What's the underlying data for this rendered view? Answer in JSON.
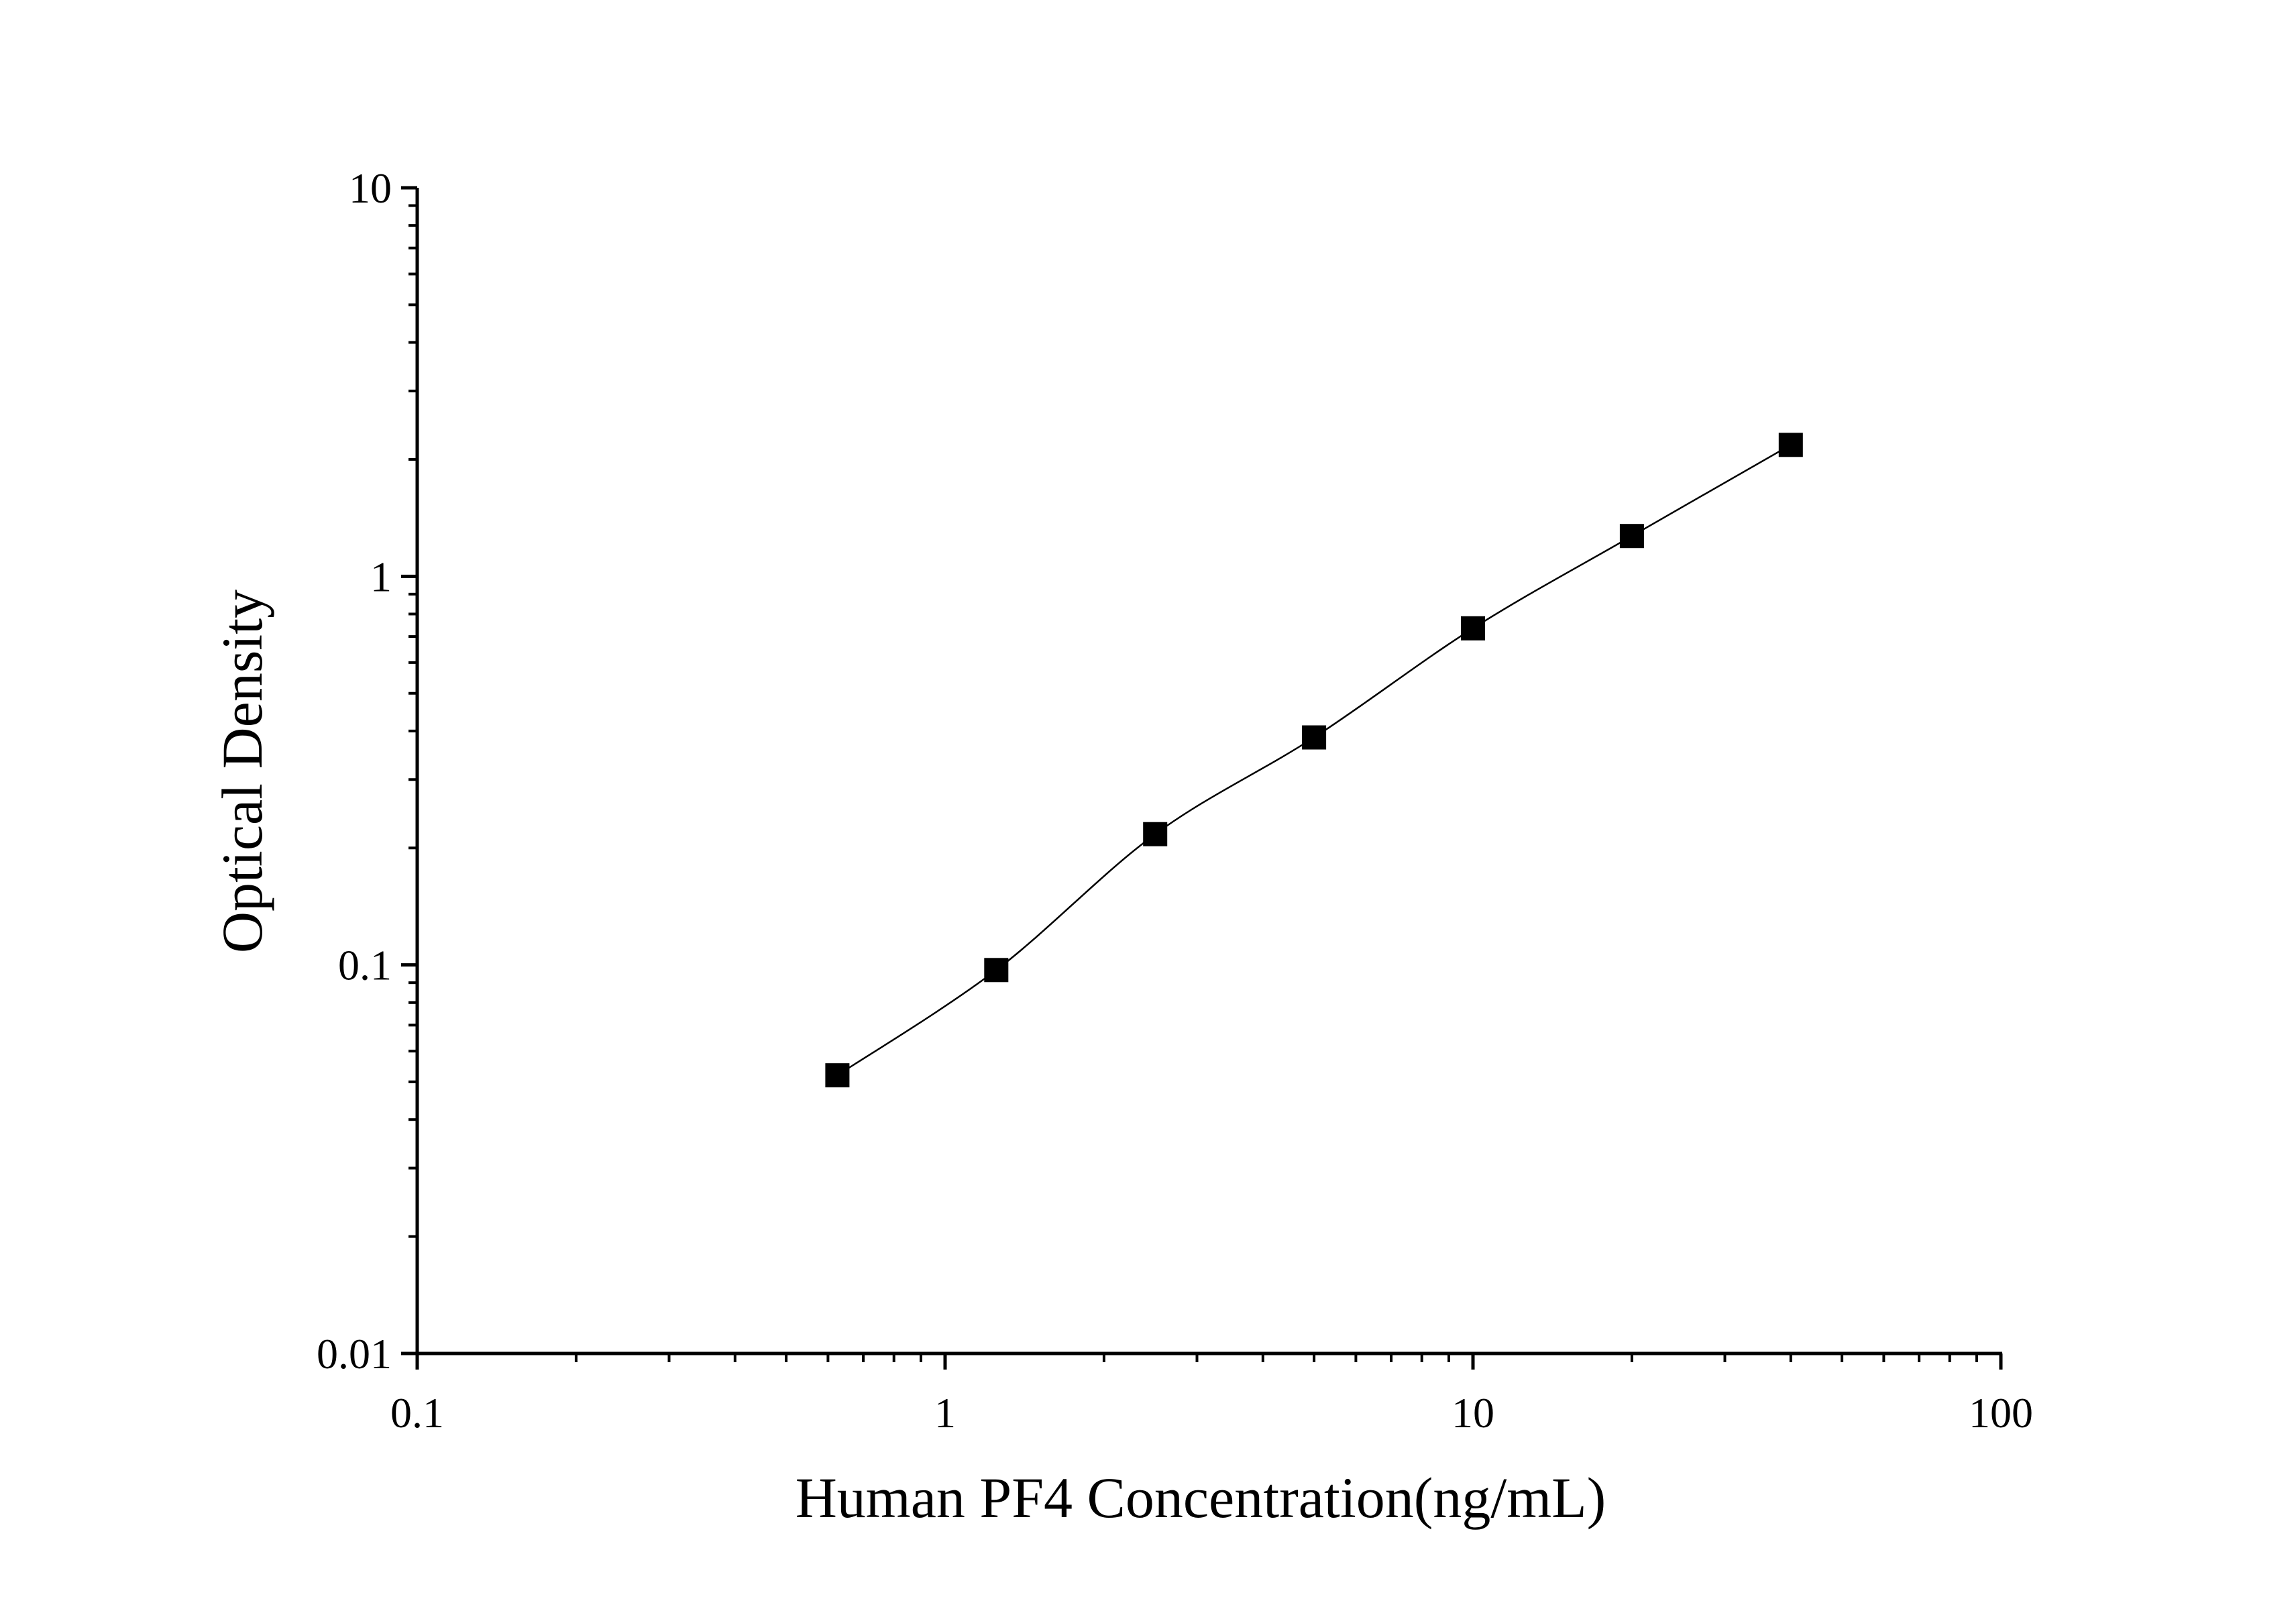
{
  "chart_data": {
    "type": "scatter",
    "xlabel": "Human PF4 Concentration(ng/mL)",
    "ylabel": "Optical Density",
    "x_scale": "log",
    "y_scale": "log",
    "xlim": [
      0.1,
      100
    ],
    "ylim": [
      0.01,
      10
    ],
    "x_ticks": [
      0.1,
      1,
      10,
      100
    ],
    "x_tick_labels": [
      "0.1",
      "1",
      "10",
      "100"
    ],
    "y_ticks": [
      0.01,
      0.1,
      1,
      10
    ],
    "y_tick_labels": [
      "0.01",
      "0.1",
      "1",
      "10"
    ],
    "grid": false,
    "legend": "none",
    "series": [
      {
        "marker": "square",
        "color": "#000000",
        "fit_line": true,
        "points": [
          {
            "x": 0.625,
            "y": 0.052
          },
          {
            "x": 1.25,
            "y": 0.097
          },
          {
            "x": 2.5,
            "y": 0.217
          },
          {
            "x": 5,
            "y": 0.385
          },
          {
            "x": 10,
            "y": 0.735
          },
          {
            "x": 20,
            "y": 1.27
          },
          {
            "x": 40,
            "y": 2.18
          }
        ]
      }
    ]
  }
}
